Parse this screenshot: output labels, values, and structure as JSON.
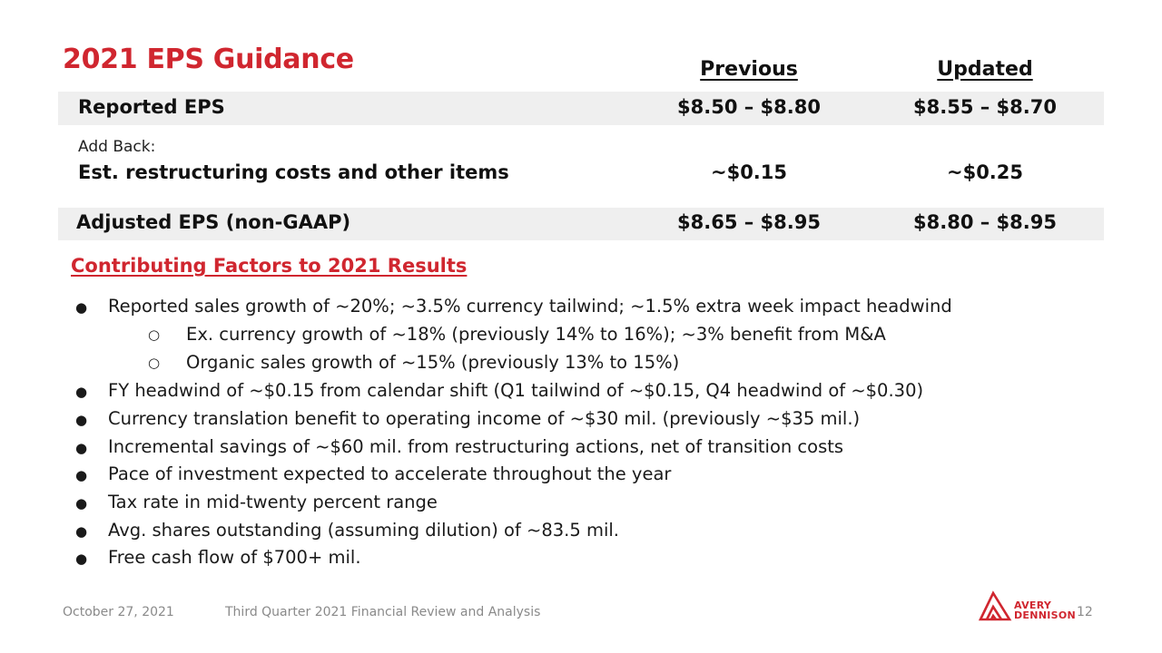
{
  "title": "2021 EPS Guidance",
  "columns": {
    "previous": "Previous",
    "updated": "Updated"
  },
  "rows": {
    "reported": {
      "label": "Reported EPS",
      "previous": "$8.50 – $8.80",
      "updated": "$8.55 – $8.70"
    },
    "addback": {
      "sublabel": "Add Back:",
      "label": "Est. restructuring costs and other items",
      "previous": "~$0.15",
      "updated": "~$0.25"
    },
    "adjusted": {
      "label": "Adjusted EPS (non-GAAP)",
      "previous": "$8.65 – $8.95",
      "updated": "$8.80 – $8.95"
    }
  },
  "factors": {
    "title": "Contributing Factors to 2021 Results",
    "bullet_glyph": "●",
    "sub_bullet_glyph": "○",
    "items": [
      {
        "text": "Reported sales growth of ~20%; ~3.5% currency tailwind; ~1.5% extra week impact headwind"
      },
      {
        "text": "Ex. currency growth of ~18% (previously 14% to 16%); ~3% benefit from M&A"
      },
      {
        "text": "Organic sales growth of ~15% (previously 13% to 15%)"
      },
      {
        "text": "FY headwind of ~$0.15 from calendar shift (Q1 tailwind of ~$0.15, Q4 headwind of ~$0.30)"
      },
      {
        "text": "Currency translation benefit to operating income of ~$30 mil. (previously ~$35 mil.)"
      },
      {
        "text": "Incremental savings of ~$60 mil. from restructuring actions, net of transition costs"
      },
      {
        "text": "Pace of investment expected to accelerate throughout the year"
      },
      {
        "text": "Tax rate in mid-twenty percent range"
      },
      {
        "text": "Avg. shares outstanding (assuming dilution) of ~83.5 mil."
      },
      {
        "text": "Free cash flow of $700+ mil."
      }
    ]
  },
  "footer": {
    "date": "October 27, 2021",
    "description": "Third Quarter 2021 Financial Review and Analysis",
    "page": "12"
  },
  "logo": {
    "line1": "AVERY",
    "line2": "DENNISON",
    "icon": "avery-dennison-logo-icon",
    "color": "#d0262f"
  },
  "colors": {
    "accent": "#d0262f",
    "row_shade": "#efefef",
    "footer_text": "#8a8a8a"
  }
}
